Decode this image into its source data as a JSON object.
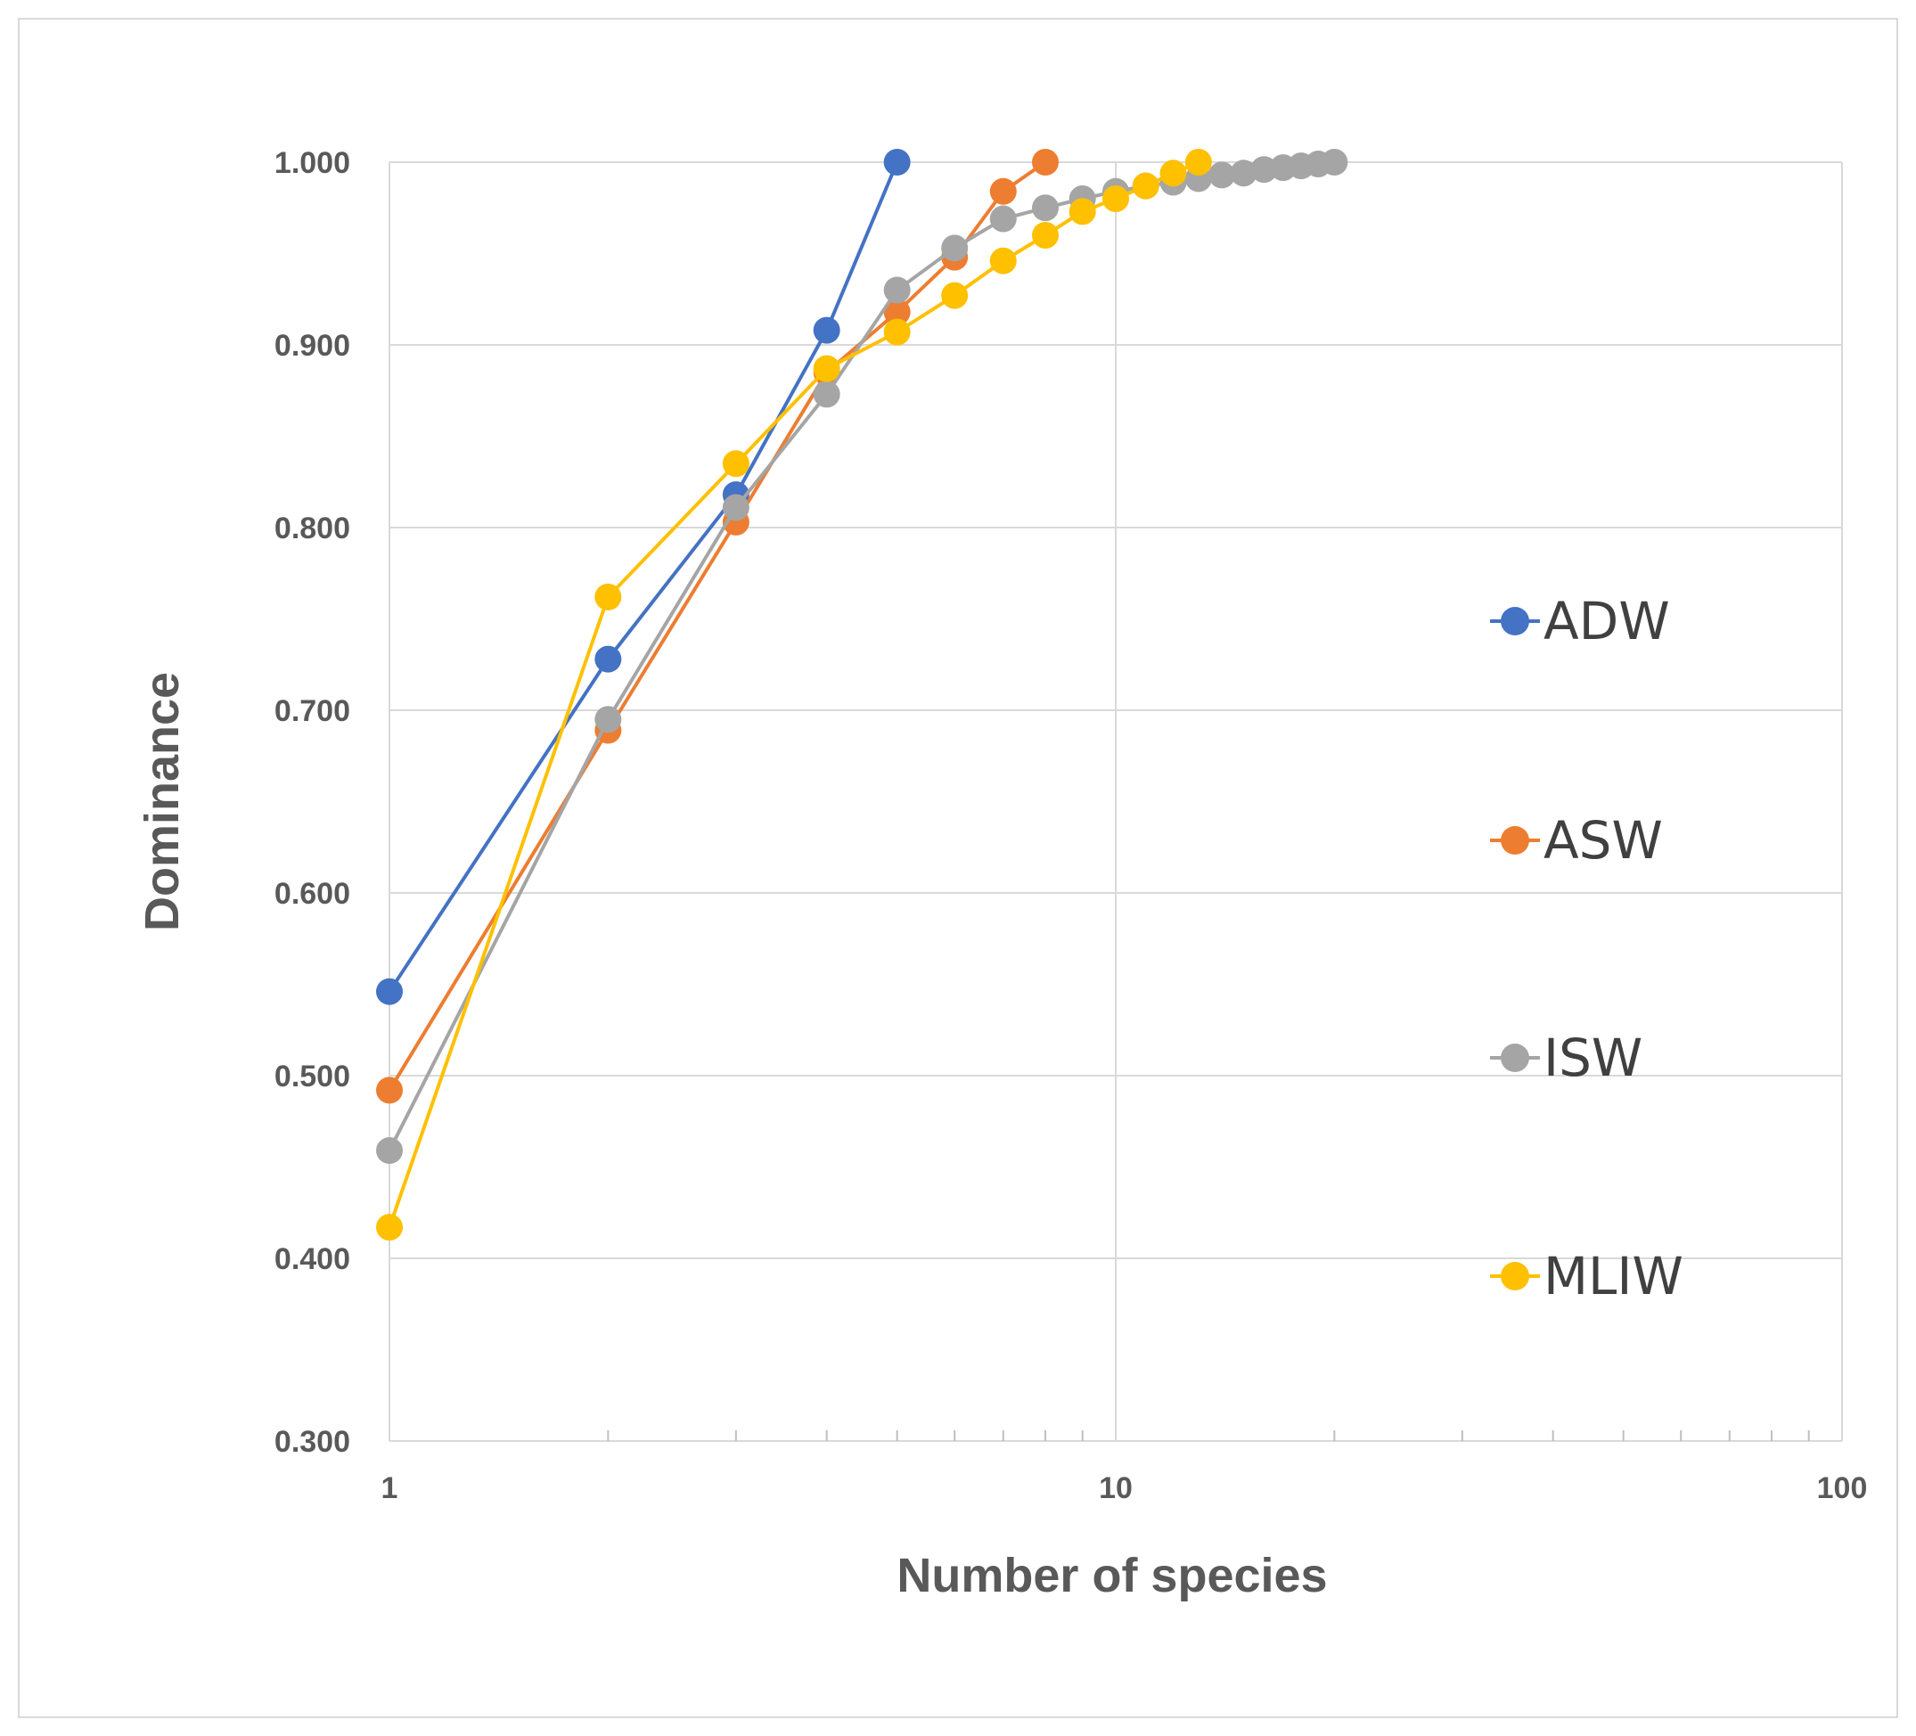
{
  "chart_data": {
    "type": "line",
    "xscale": "log",
    "xlim": [
      1,
      100
    ],
    "ylim": [
      0.3,
      1.0
    ],
    "xticks": [
      {
        "value": 1,
        "label": "1"
      },
      {
        "value": 10,
        "label": "10"
      },
      {
        "value": 100,
        "label": "100"
      }
    ],
    "yticks": [
      {
        "value": 0.3,
        "label": "0.300"
      },
      {
        "value": 0.4,
        "label": "0.400"
      },
      {
        "value": 0.5,
        "label": "0.500"
      },
      {
        "value": 0.6,
        "label": "0.600"
      },
      {
        "value": 0.7,
        "label": "0.700"
      },
      {
        "value": 0.8,
        "label": "0.800"
      },
      {
        "value": 0.9,
        "label": "0.900"
      },
      {
        "value": 1.0,
        "label": "1.000"
      }
    ],
    "xlabel": "Number of species",
    "ylabel": "Dominance",
    "grid": true,
    "legend_position": "right",
    "series": [
      {
        "name": "ADW",
        "color": "#4472C4",
        "x": [
          1,
          2,
          3,
          4,
          5
        ],
        "y": [
          0.546,
          0.728,
          0.818,
          0.908,
          1.0
        ]
      },
      {
        "name": "ASW",
        "color": "#ED7D31",
        "x": [
          1,
          2,
          3,
          4,
          5,
          6,
          7,
          8
        ],
        "y": [
          0.492,
          0.689,
          0.803,
          0.885,
          0.918,
          0.948,
          0.984,
          1.0
        ]
      },
      {
        "name": "ISW",
        "color": "#A5A5A5",
        "x": [
          1,
          2,
          3,
          4,
          5,
          6,
          7,
          8,
          9,
          10,
          11,
          12,
          13,
          14,
          15,
          16,
          17,
          18,
          19,
          20
        ],
        "y": [
          0.459,
          0.695,
          0.811,
          0.873,
          0.93,
          0.953,
          0.969,
          0.975,
          0.98,
          0.984,
          0.987,
          0.989,
          0.991,
          0.993,
          0.994,
          0.996,
          0.997,
          0.998,
          0.999,
          1.0
        ]
      },
      {
        "name": "MLIW",
        "color": "#FFC000",
        "x": [
          1,
          2,
          3,
          4,
          5,
          6,
          7,
          8,
          9,
          10,
          11,
          12,
          13
        ],
        "y": [
          0.417,
          0.762,
          0.835,
          0.887,
          0.907,
          0.927,
          0.946,
          0.96,
          0.973,
          0.98,
          0.987,
          0.994,
          1.0
        ]
      }
    ]
  }
}
